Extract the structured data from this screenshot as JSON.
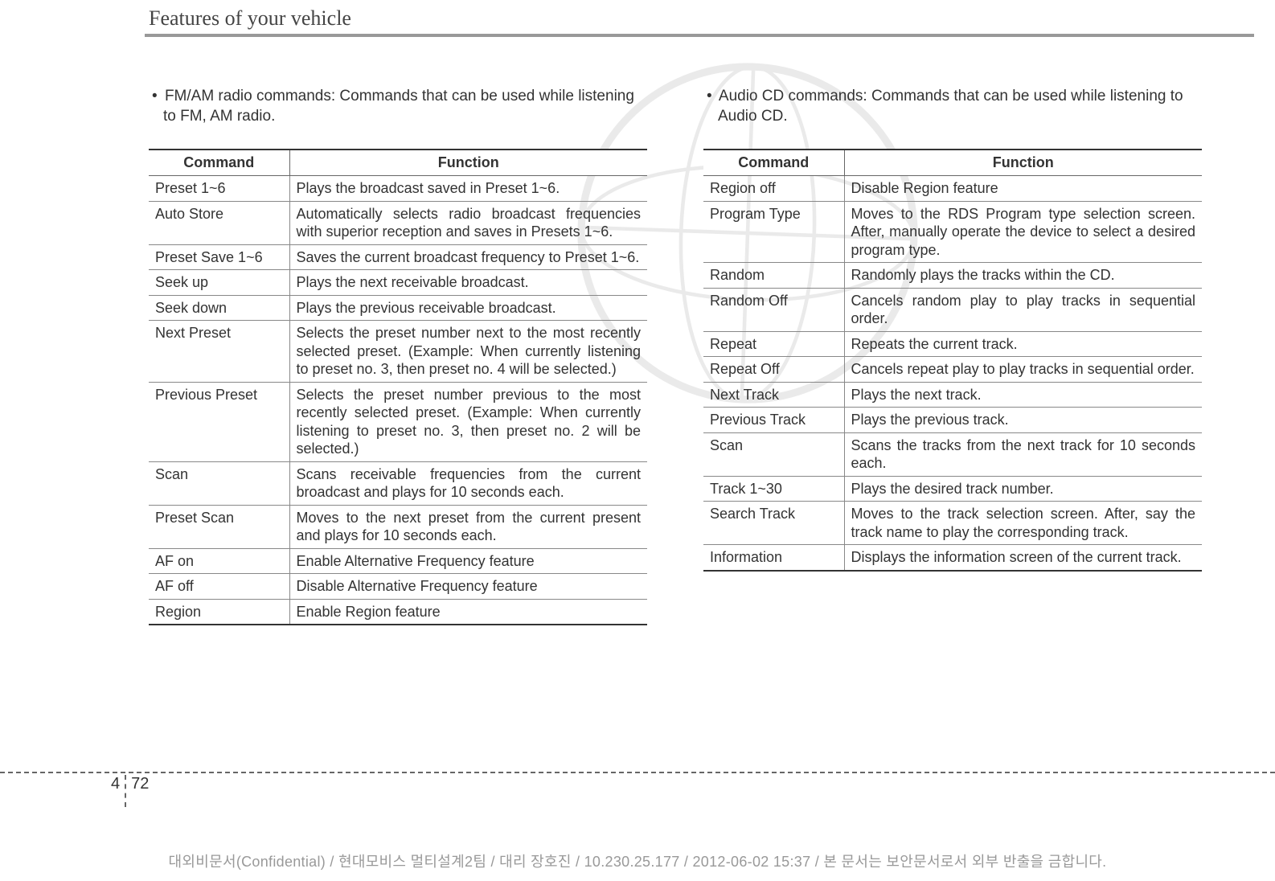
{
  "section_title": "Features of your vehicle",
  "left": {
    "intro": "FM/AM radio commands: Commands that can be used while listening to FM, AM radio.",
    "header": {
      "command": "Command",
      "function": "Function"
    },
    "rows": [
      {
        "command": "Preset 1~6",
        "function": "Plays the broadcast saved in Preset 1~6.",
        "justify": false
      },
      {
        "command": "Auto Store",
        "function": "Automatically selects radio broadcast frequencies with superior reception and saves in Presets 1~6.",
        "justify": true
      },
      {
        "command": "Preset Save 1~6",
        "function": "Saves the current broadcast frequency to Preset 1~6.",
        "justify": true
      },
      {
        "command": "Seek up",
        "function": "Plays the next receivable broadcast.",
        "justify": false
      },
      {
        "command": "Seek down",
        "function": "Plays the previous receivable broadcast.",
        "justify": false
      },
      {
        "command": "Next Preset",
        "function": "Selects the preset number next to the most recently selected preset. (Example: When currently listening to preset no. 3, then preset no. 4 will be selected.)",
        "justify": true
      },
      {
        "command": "Previous Preset",
        "function": "Selects the preset number previous to the most recently selected preset. (Example: When currently listening to preset no. 3, then preset no. 2 will be selected.)",
        "justify": true
      },
      {
        "command": "Scan",
        "function": "Scans receivable frequencies from the current broadcast and plays for 10 seconds each.",
        "justify": true
      },
      {
        "command": "Preset Scan",
        "function": "Moves to the next preset from the current present and plays for 10 seconds each.",
        "justify": true
      },
      {
        "command": "AF on",
        "function": "Enable Alternative Frequency feature",
        "justify": false
      },
      {
        "command": "AF off",
        "function": "Disable Alternative Frequency feature",
        "justify": false
      },
      {
        "command": "Region",
        "function": "Enable Region feature",
        "justify": false
      }
    ]
  },
  "right": {
    "intro": "Audio CD commands: Commands that can be used while listening to Audio CD.",
    "header": {
      "command": "Command",
      "function": "Function"
    },
    "rows": [
      {
        "command": "Region off",
        "function": "Disable Region feature",
        "justify": false
      },
      {
        "command": "Program Type",
        "function": "Moves to the RDS Program type selection screen. After, manually operate the device to select  a desired program type.",
        "justify": true
      },
      {
        "command": "Random",
        "function": "Randomly plays the tracks within the CD.",
        "justify": false
      },
      {
        "command": "Random Off",
        "function": "Cancels random play to play tracks in sequential order.",
        "justify": true
      },
      {
        "command": "Repeat",
        "function": "Repeats the current track.",
        "justify": false
      },
      {
        "command": "Repeat Off",
        "function": "Cancels repeat play to play tracks in sequential order.",
        "justify": true
      },
      {
        "command": "Next Track",
        "function": "Plays the next track.",
        "justify": false
      },
      {
        "command": "Previous Track",
        "function": "Plays the previous track.",
        "justify": false
      },
      {
        "command": "Scan",
        "function": "Scans the tracks from the next track for 10 seconds each.",
        "justify": true
      },
      {
        "command": "Track 1~30",
        "function": "Plays the desired track number.",
        "justify": false
      },
      {
        "command": "Search Track",
        "function": "Moves to the track selection screen. After, say the track name to play the corresponding track.",
        "justify": true
      },
      {
        "command": "Information",
        "function": "Displays the information screen of the current track.",
        "justify": true
      }
    ]
  },
  "page_number": {
    "chapter": "4",
    "page": "72"
  },
  "confidential_footer": "대외비문서(Confidential) / 현대모비스 멀티설계2팀 / 대리 장호진 / 10.230.25.177 / 2012-06-02 15:37 /  본 문서는 보안문서로서 외부 반출을 금합니다."
}
